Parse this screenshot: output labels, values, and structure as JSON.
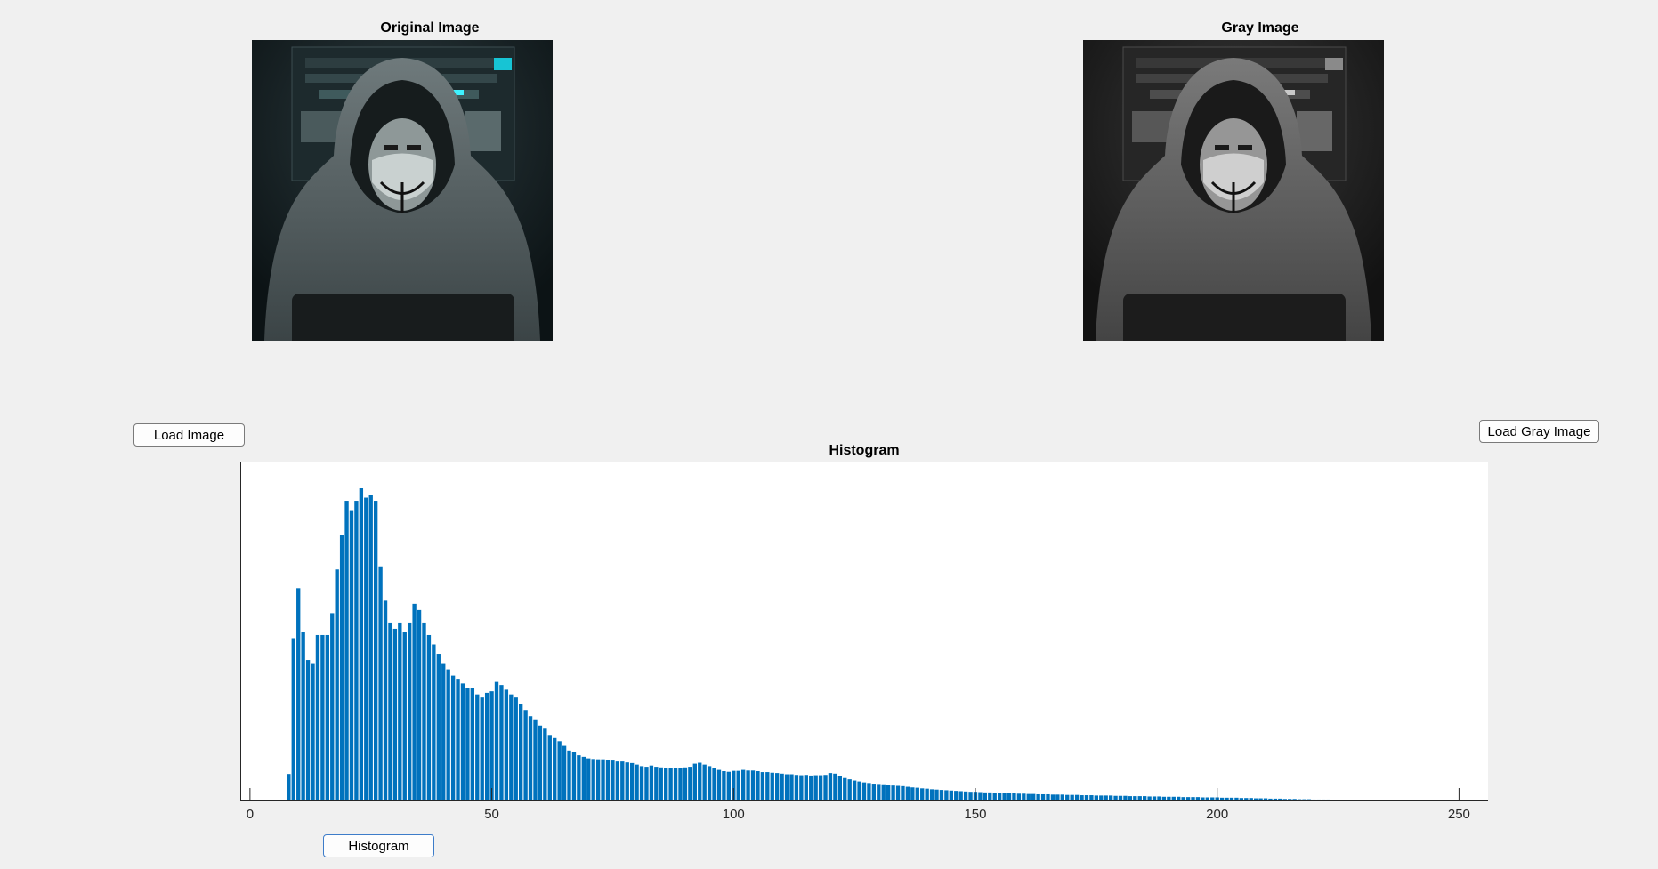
{
  "window": {
    "background": "#f0f0f0"
  },
  "original_panel": {
    "title": "Original Image",
    "image_semantic": "hooded-figure-color-photo"
  },
  "gray_panel": {
    "title": "Gray Image",
    "image_semantic": "hooded-figure-grayscale-photo"
  },
  "buttons": {
    "load_image": "Load Image",
    "load_gray_image": "Load Gray Image",
    "histogram": "Histogram"
  },
  "chart_data": {
    "type": "bar",
    "title": "Histogram",
    "xlabel": "",
    "ylabel": "",
    "xlim": [
      -2,
      256
    ],
    "ylim": [
      0,
      1
    ],
    "x_ticks": [
      0,
      50,
      100,
      150,
      200,
      250
    ],
    "y_ticks": [],
    "grid": false,
    "bar_color": "#0072bd",
    "x_start": 0,
    "values": [
      0,
      0,
      0,
      0,
      0,
      0,
      0,
      0,
      0.085,
      0.52,
      0.68,
      0.54,
      0.45,
      0.44,
      0.53,
      0.53,
      0.53,
      0.6,
      0.74,
      0.85,
      0.96,
      0.93,
      0.96,
      1.0,
      0.97,
      0.98,
      0.96,
      0.75,
      0.64,
      0.57,
      0.55,
      0.57,
      0.54,
      0.57,
      0.63,
      0.61,
      0.57,
      0.53,
      0.5,
      0.47,
      0.44,
      0.42,
      0.4,
      0.39,
      0.375,
      0.36,
      0.36,
      0.34,
      0.33,
      0.345,
      0.35,
      0.38,
      0.37,
      0.355,
      0.34,
      0.33,
      0.31,
      0.29,
      0.27,
      0.26,
      0.24,
      0.23,
      0.21,
      0.2,
      0.19,
      0.175,
      0.16,
      0.155,
      0.145,
      0.14,
      0.135,
      0.133,
      0.132,
      0.132,
      0.13,
      0.128,
      0.125,
      0.125,
      0.122,
      0.12,
      0.115,
      0.11,
      0.108,
      0.112,
      0.108,
      0.106,
      0.103,
      0.103,
      0.105,
      0.103,
      0.106,
      0.108,
      0.118,
      0.121,
      0.115,
      0.11,
      0.104,
      0.098,
      0.094,
      0.092,
      0.095,
      0.095,
      0.098,
      0.096,
      0.096,
      0.094,
      0.091,
      0.091,
      0.089,
      0.088,
      0.086,
      0.084,
      0.084,
      0.082,
      0.081,
      0.082,
      0.08,
      0.081,
      0.081,
      0.082,
      0.088,
      0.086,
      0.079,
      0.072,
      0.068,
      0.064,
      0.061,
      0.058,
      0.056,
      0.054,
      0.053,
      0.052,
      0.05,
      0.048,
      0.047,
      0.046,
      0.044,
      0.042,
      0.041,
      0.039,
      0.038,
      0.036,
      0.035,
      0.034,
      0.033,
      0.032,
      0.031,
      0.03,
      0.029,
      0.028,
      0.028,
      0.027,
      0.026,
      0.026,
      0.025,
      0.025,
      0.024,
      0.023,
      0.023,
      0.022,
      0.022,
      0.021,
      0.021,
      0.02,
      0.02,
      0.02,
      0.019,
      0.019,
      0.019,
      0.018,
      0.018,
      0.018,
      0.017,
      0.017,
      0.017,
      0.016,
      0.016,
      0.016,
      0.016,
      0.015,
      0.015,
      0.015,
      0.014,
      0.014,
      0.014,
      0.014,
      0.013,
      0.013,
      0.013,
      0.012,
      0.012,
      0.012,
      0.012,
      0.011,
      0.011,
      0.011,
      0.011,
      0.01,
      0.01,
      0.01,
      0.01,
      0.009,
      0.009,
      0.009,
      0.009,
      0.008,
      0.008,
      0.008,
      0.007,
      0.007,
      0.007,
      0.006,
      0.006,
      0.006,
      0.005,
      0.005,
      0.005,
      0.004,
      0.004,
      0.004,
      0.003,
      0.003,
      0.003,
      0.003,
      0.002,
      0.002,
      0.002,
      0.002,
      0.002,
      0.001,
      0.001,
      0.001,
      0.001,
      0.001,
      0.001,
      0,
      0,
      0,
      0,
      0,
      0,
      0,
      0,
      0,
      0,
      0,
      0,
      0,
      0,
      0,
      0,
      0,
      0,
      0,
      0,
      0,
      0,
      0,
      0,
      0,
      0,
      0,
      0,
      0
    ]
  }
}
